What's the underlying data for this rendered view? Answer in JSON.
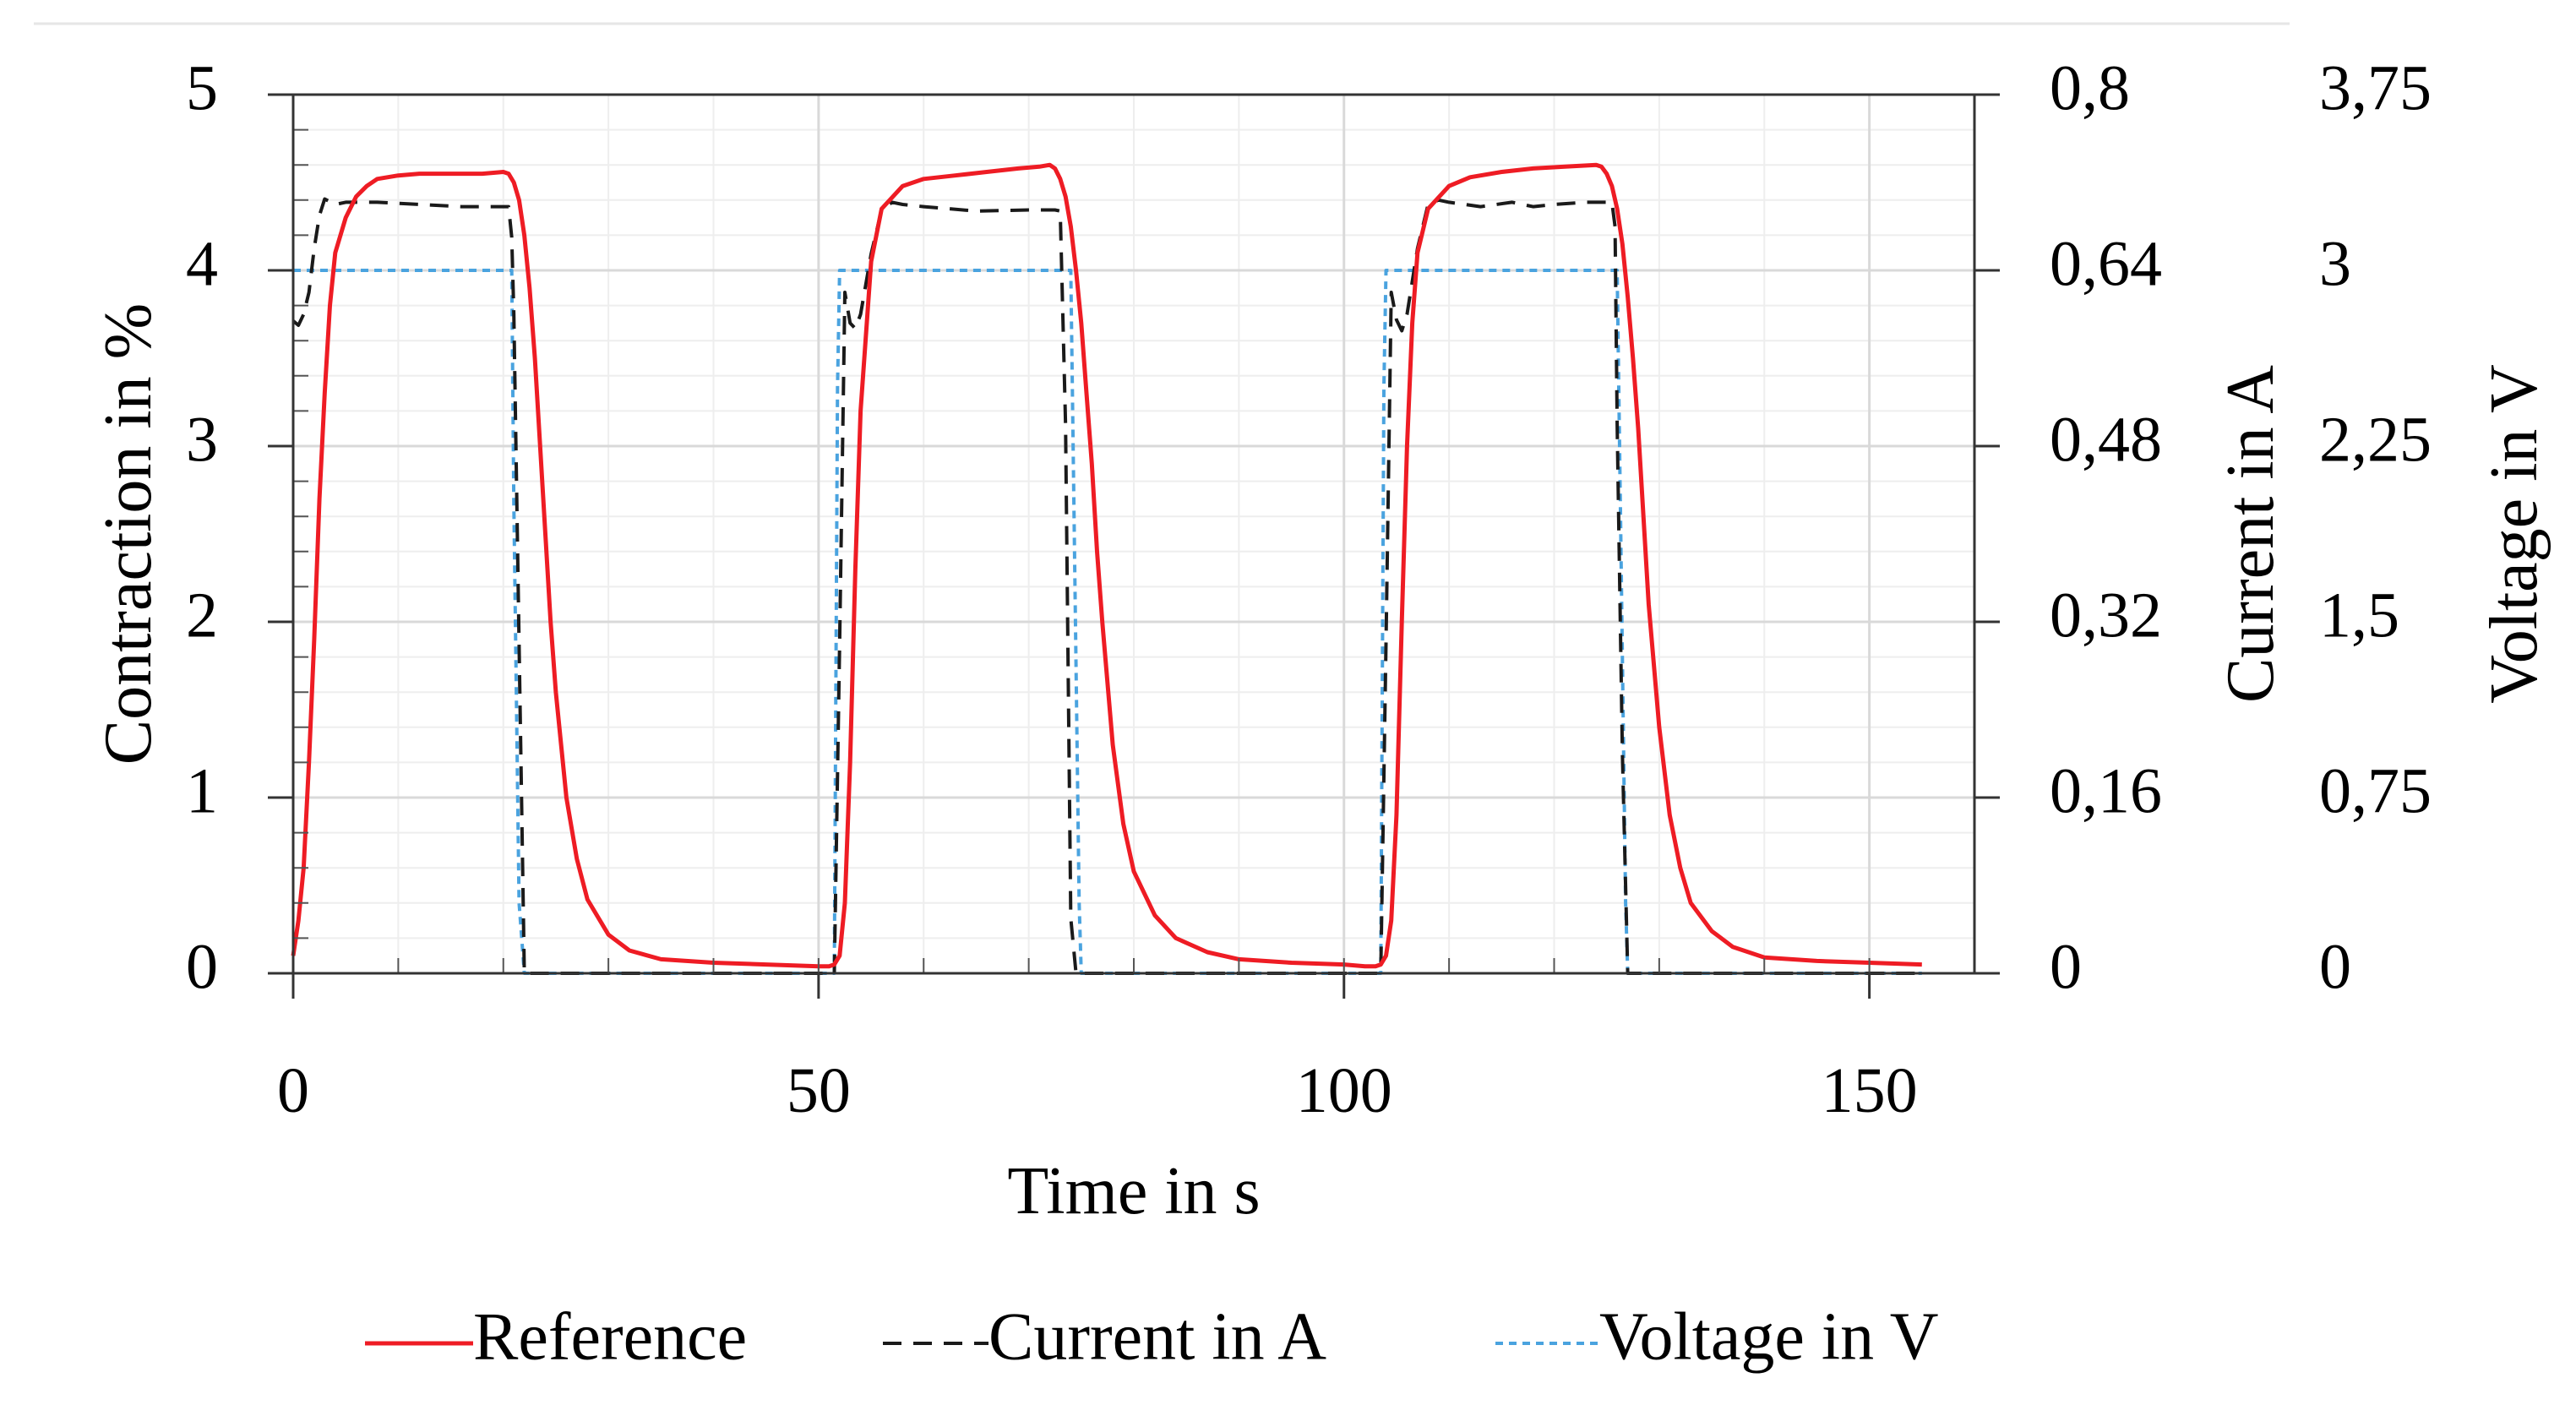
{
  "colors": {
    "reference": "#ee1c24",
    "current": "#1a1a1a",
    "voltage": "#4aa3df",
    "grid": "#d9d9d9",
    "minor_grid": "#eeeeee",
    "axis": "#000000"
  },
  "chart_data": {
    "type": "line",
    "title": "",
    "xlabel": "Time in s",
    "ylabel_left": "Contraction in %",
    "ylabel_right1": "Current in A",
    "ylabel_right2": "Voltage in V",
    "xlim": [
      0,
      160
    ],
    "ylim_left": [
      0,
      5
    ],
    "ylim_right1": [
      0,
      0.8
    ],
    "ylim_right2": [
      0,
      3.75
    ],
    "x_ticks": [
      0,
      50,
      100,
      150
    ],
    "x_tick_labels": [
      "0",
      "50",
      "100",
      "150"
    ],
    "y_left_ticks": [
      0,
      1,
      2,
      3,
      4,
      5
    ],
    "y_left_tick_labels": [
      "0",
      "1",
      "2",
      "3",
      "4",
      "5"
    ],
    "y_right1_ticks": [
      0,
      0.16,
      0.32,
      0.48,
      0.64,
      0.8
    ],
    "y_right1_tick_labels": [
      "0",
      "0,16",
      "0,32",
      "0,48",
      "0,64",
      "0,8"
    ],
    "y_right2_ticks": [
      0,
      0.75,
      1.5,
      2.25,
      3,
      3.75
    ],
    "y_right2_tick_labels": [
      "0",
      "0,75",
      "1,5",
      "2,25",
      "3",
      "3,75"
    ],
    "legend_position": "bottom",
    "series": [
      {
        "name": "Reference",
        "axis": "left",
        "style": "solid",
        "x": [
          0,
          0.5,
          1,
          1.5,
          2,
          2.5,
          3,
          3.5,
          4,
          5,
          6,
          7,
          8,
          10,
          12,
          15,
          18,
          20,
          20.5,
          21,
          21.5,
          22,
          22.5,
          23,
          23.5,
          24,
          24.5,
          25,
          26,
          27,
          28,
          30,
          32,
          35,
          40,
          45,
          50,
          51,
          51.5,
          52,
          52.5,
          53,
          53.5,
          54,
          55,
          56,
          58,
          60,
          63,
          66,
          69,
          71,
          72,
          72.5,
          73,
          73.5,
          74,
          74.5,
          75,
          75.5,
          76,
          76.5,
          77,
          78,
          79,
          80,
          82,
          84,
          87,
          90,
          95,
          100,
          102,
          103,
          103.5,
          104,
          104.5,
          105,
          105.5,
          106,
          106.5,
          107,
          108,
          110,
          112,
          115,
          118,
          121,
          124,
          124.5,
          125,
          125.5,
          126,
          126.5,
          127,
          127.5,
          128,
          128.5,
          129,
          130,
          131,
          132,
          133,
          135,
          137,
          140,
          145,
          150,
          155
        ],
        "y": [
          0.1,
          0.3,
          0.6,
          1.2,
          1.9,
          2.7,
          3.3,
          3.8,
          4.1,
          4.3,
          4.42,
          4.48,
          4.52,
          4.54,
          4.55,
          4.55,
          4.55,
          4.56,
          4.55,
          4.5,
          4.4,
          4.2,
          3.9,
          3.5,
          3.0,
          2.5,
          2.0,
          1.6,
          1.0,
          0.65,
          0.42,
          0.22,
          0.13,
          0.08,
          0.06,
          0.05,
          0.04,
          0.04,
          0.05,
          0.1,
          0.4,
          1.2,
          2.3,
          3.2,
          4.05,
          4.35,
          4.48,
          4.52,
          4.54,
          4.56,
          4.58,
          4.59,
          4.6,
          4.58,
          4.52,
          4.42,
          4.25,
          4.0,
          3.7,
          3.3,
          2.9,
          2.4,
          2.0,
          1.3,
          0.85,
          0.58,
          0.33,
          0.2,
          0.12,
          0.08,
          0.06,
          0.05,
          0.04,
          0.04,
          0.05,
          0.1,
          0.3,
          0.9,
          2.0,
          3.0,
          3.7,
          4.1,
          4.35,
          4.48,
          4.53,
          4.56,
          4.58,
          4.59,
          4.6,
          4.59,
          4.55,
          4.48,
          4.35,
          4.15,
          3.85,
          3.5,
          3.1,
          2.6,
          2.1,
          1.4,
          0.9,
          0.6,
          0.4,
          0.24,
          0.15,
          0.09,
          0.07,
          0.06,
          0.05
        ]
      },
      {
        "name": "Current in A",
        "axis": "right1",
        "style": "dashed",
        "x": [
          0,
          0.5,
          1,
          1.5,
          2,
          2.5,
          3,
          4,
          5,
          8,
          12,
          16,
          19,
          20.5,
          20.8,
          21,
          21.5,
          22,
          22.5,
          23,
          30,
          40,
          50,
          51.5,
          52,
          52.5,
          53,
          53.5,
          54,
          55,
          56,
          57,
          58,
          60,
          65,
          70,
          72.5,
          73,
          73.5,
          74,
          74.5,
          75,
          80,
          90,
          100,
          103.5,
          104,
          104.5,
          105,
          105.5,
          106,
          107,
          108,
          109,
          110,
          113,
          116,
          118,
          120,
          123,
          125.5,
          125.8,
          126,
          126.5,
          127,
          127.5,
          135,
          145,
          155
        ],
        "y": [
          0.594,
          0.59,
          0.6,
          0.62,
          0.66,
          0.69,
          0.705,
          0.7,
          0.702,
          0.702,
          0.7,
          0.698,
          0.698,
          0.698,
          0.67,
          0.6,
          0.3,
          0.0,
          0.0,
          0.0,
          0.0,
          0.0,
          0.0,
          0.0,
          0.3,
          0.62,
          0.592,
          0.587,
          0.6,
          0.655,
          0.695,
          0.702,
          0.7,
          0.698,
          0.694,
          0.695,
          0.695,
          0.694,
          0.5,
          0.05,
          0.0,
          0.0,
          0.0,
          0.0,
          0.0,
          0.0,
          0.3,
          0.62,
          0.595,
          0.585,
          0.6,
          0.66,
          0.7,
          0.704,
          0.702,
          0.698,
          0.702,
          0.698,
          0.7,
          0.702,
          0.702,
          0.68,
          0.5,
          0.2,
          0.0,
          0.0,
          0.0,
          0.0,
          0.0
        ]
      },
      {
        "name": "Voltage in V",
        "axis": "right2",
        "style": "dotted",
        "x": [
          0,
          20.8,
          21,
          21.5,
          22,
          51.5,
          51.8,
          52,
          74,
          74.3,
          74.8,
          75,
          103.5,
          103.8,
          104,
          126,
          126.3,
          126.8,
          127,
          155
        ],
        "y": [
          3.0,
          3.0,
          2.0,
          0.3,
          0.0,
          0.0,
          2.5,
          3.0,
          3.0,
          2.0,
          0.3,
          0.0,
          0.0,
          2.5,
          3.0,
          3.0,
          2.0,
          0.3,
          0.0,
          0.0
        ]
      }
    ]
  }
}
